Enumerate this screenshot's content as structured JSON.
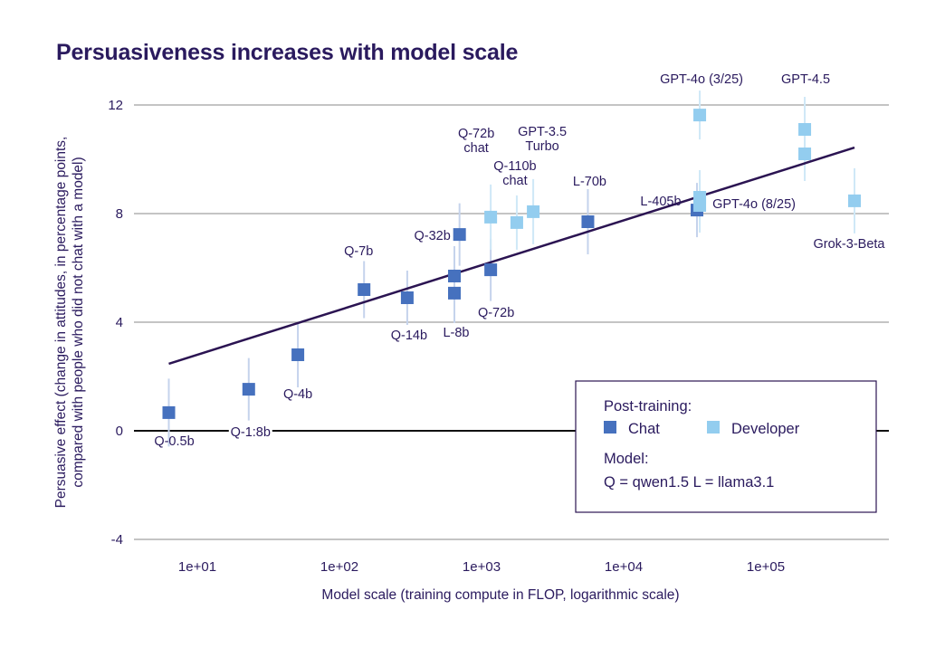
{
  "chart_data": {
    "type": "scatter",
    "title": "Persuasiveness increases with model scale",
    "xlabel": "Model scale (training compute in FLOP, logarithmic scale)",
    "ylabel": [
      "Persuasive effect (change in attitudes, in percentage points,",
      "compared with people who did not chat with a model)"
    ],
    "x_scale": "log",
    "x_ticks": [
      {
        "value": 10,
        "label": "1e+01"
      },
      {
        "value": 100,
        "label": "1e+02"
      },
      {
        "value": 1000,
        "label": "1e+03"
      },
      {
        "value": 10000,
        "label": "1e+04"
      },
      {
        "value": 100000,
        "label": "1e+05"
      }
    ],
    "y_ticks": [
      12,
      8,
      4,
      0,
      -4
    ],
    "ylim": [
      -4,
      13
    ],
    "grid": "horizontal",
    "colors": {
      "chat": "#4671be",
      "developer": "#93cdef",
      "trend": "#2b1452",
      "grid": "#a0a0a0"
    },
    "points": [
      {
        "label": "Q-0.5b",
        "x": 6.3,
        "y": 0.67,
        "err": 1.25,
        "type": "chat"
      },
      {
        "label": "Q-1:8b",
        "x": 23,
        "y": 1.53,
        "err": 1.15,
        "type": "chat"
      },
      {
        "label": "Q-4b",
        "x": 51,
        "y": 2.8,
        "err": 1.2,
        "type": "chat"
      },
      {
        "label": "Q-7b",
        "x": 149,
        "y": 5.2,
        "err": 1.05,
        "type": "chat"
      },
      {
        "label": "Q-14b",
        "x": 300,
        "y": 4.9,
        "err": 1.0,
        "type": "chat"
      },
      {
        "label": "",
        "x": 644,
        "y": 5.7,
        "err": 1.1,
        "type": "chat"
      },
      {
        "label": "L-8b",
        "x": 644,
        "y": 5.07,
        "err": 1.1,
        "type": "chat"
      },
      {
        "label": "Q-32b",
        "x": 700,
        "y": 7.23,
        "err": 1.15,
        "type": "chat"
      },
      {
        "label": "Q-72b",
        "x": 1160,
        "y": 5.93,
        "err": 1.15,
        "type": "chat"
      },
      {
        "label": "Q-72b chat",
        "x": 1160,
        "y": 7.87,
        "err": 1.2,
        "type": "developer"
      },
      {
        "label": "Q-110b chat",
        "x": 1770,
        "y": 7.67,
        "err": 1.0,
        "type": "developer"
      },
      {
        "label": "GPT-3.5 Turbo",
        "x": 2310,
        "y": 8.07,
        "err": 1.2,
        "type": "developer"
      },
      {
        "label": "L-70b",
        "x": 5600,
        "y": 7.7,
        "err": 1.2,
        "type": "chat"
      },
      {
        "label": "L-405b",
        "x": 32800,
        "y": 8.13,
        "err": 1.0,
        "type": "chat"
      },
      {
        "label": "",
        "x": 34300,
        "y": 8.6,
        "err": 1.0,
        "type": "developer"
      },
      {
        "label": "GPT-4o (8/25)",
        "x": 34300,
        "y": 8.3,
        "err": 1.0,
        "type": "developer"
      },
      {
        "label": "GPT-4o (3/25)",
        "x": 34300,
        "y": 11.63,
        "err": 0.9,
        "type": "developer"
      },
      {
        "label": "GPT-4.5",
        "x": 188000,
        "y": 11.1,
        "err": 1.2,
        "type": "developer"
      },
      {
        "label": "",
        "x": 188000,
        "y": 10.2,
        "err": 1.0,
        "type": "developer"
      },
      {
        "label": "Grok-3-Beta",
        "x": 421000,
        "y": 8.47,
        "err": 1.2,
        "type": "developer"
      }
    ],
    "trend_line": {
      "x": [
        6.3,
        421000
      ],
      "y": [
        2.47,
        10.43
      ]
    },
    "legend": {
      "placement": "bottom-right",
      "post_training_title": "Post-training:",
      "chat_label": "Chat",
      "developer_label": "Developer",
      "model_title": "Model:",
      "model_key": "Q = qwen1.5    L = llama3.1"
    }
  }
}
